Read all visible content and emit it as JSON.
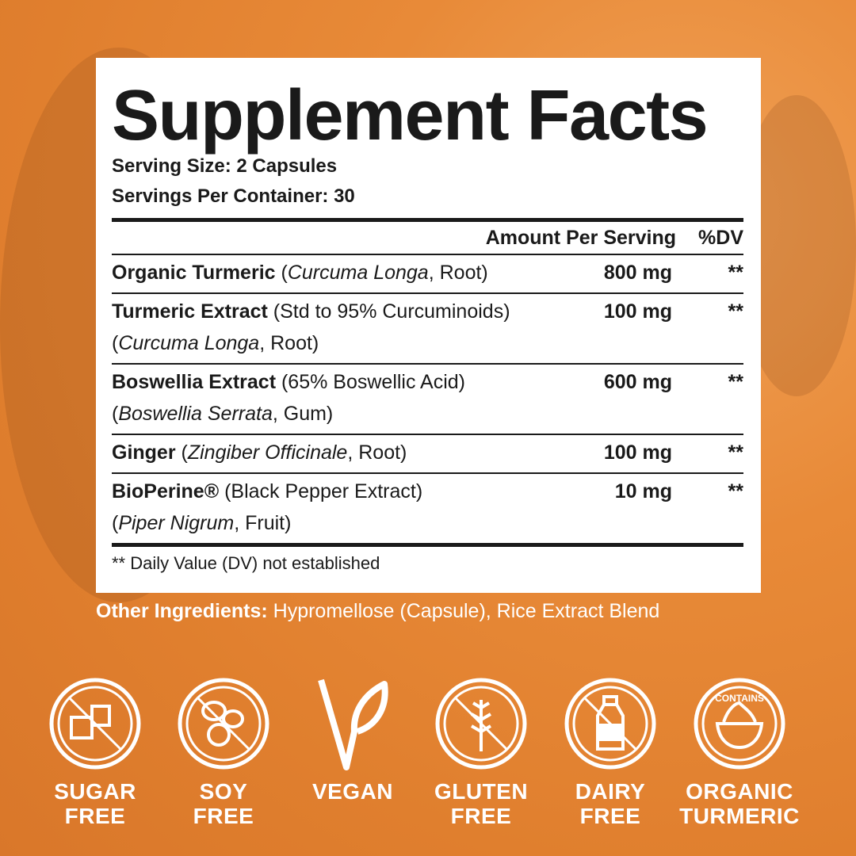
{
  "panel": {
    "title": "Supplement Facts",
    "serving_size": "Serving Size: 2 Capsules",
    "servings_per_container": "Servings Per Container: 30",
    "header": {
      "amount": "Amount Per Serving",
      "dv": "%DV"
    },
    "rows": [
      {
        "name": "Organic Turmeric",
        "detail_pre": " (",
        "detail_italic": "Curcuma Longa",
        "detail_post": ", Root)",
        "line2_pre": "",
        "line2_italic": "",
        "line2_post": "",
        "amount": "800 mg",
        "dv": "**"
      },
      {
        "name": "Turmeric Extract",
        "detail_pre": " (Std to 95% Curcuminoids)",
        "detail_italic": "",
        "detail_post": "",
        "line2_pre": "(",
        "line2_italic": "Curcuma Longa",
        "line2_post": ", Root)",
        "amount": "100 mg",
        "dv": "**"
      },
      {
        "name": "Boswellia Extract",
        "detail_pre": " (65% Boswellic Acid)",
        "detail_italic": "",
        "detail_post": "",
        "line2_pre": "(",
        "line2_italic": "Boswellia Serrata",
        "line2_post": ", Gum)",
        "amount": "600 mg",
        "dv": "**"
      },
      {
        "name": "Ginger",
        "detail_pre": " (",
        "detail_italic": "Zingiber Officinale",
        "detail_post": ", Root)",
        "line2_pre": "",
        "line2_italic": "",
        "line2_post": "",
        "amount": "100 mg",
        "dv": "**"
      },
      {
        "name": "BioPerine®",
        "detail_pre": " (Black Pepper Extract)",
        "detail_italic": "",
        "detail_post": "",
        "line2_pre": "(",
        "line2_italic": "Piper Nigrum",
        "line2_post": ", Fruit)",
        "amount": "10 mg",
        "dv": "**"
      }
    ],
    "footnote": "** Daily Value (DV) not established"
  },
  "other_ingredients": {
    "label": "Other Ingredients:",
    "value": " Hypromellose (Capsule), Rice Extract Blend"
  },
  "badges": [
    {
      "icon": "sugar-cube-crossed-icon",
      "line1": "SUGAR",
      "line2": "FREE"
    },
    {
      "icon": "soybean-crossed-icon",
      "line1": "SOY",
      "line2": "FREE"
    },
    {
      "icon": "vegan-leaf-icon",
      "line1": "VEGAN",
      "line2": ""
    },
    {
      "icon": "wheat-crossed-icon",
      "line1": "GLUTEN",
      "line2": "FREE"
    },
    {
      "icon": "milk-bottle-crossed-icon",
      "line1": "DAIRY",
      "line2": "FREE"
    },
    {
      "icon": "turmeric-bowl-icon",
      "line1": "ORGANIC",
      "line2": "TURMERIC",
      "seal_text": "CONTAINS"
    }
  ],
  "colors": {
    "background": "#e88a38",
    "panel": "#ffffff",
    "text": "#1a1a1a",
    "badge": "#ffffff"
  }
}
